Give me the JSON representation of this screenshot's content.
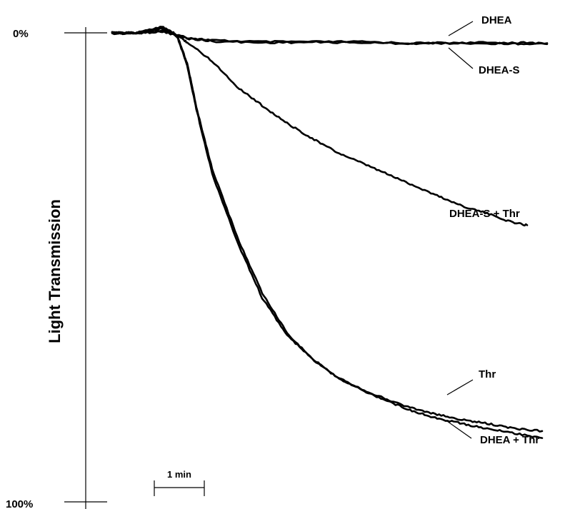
{
  "chart_data": {
    "type": "line",
    "ylabel": "Light Transmission",
    "y_ticks": [
      "0%",
      "100%"
    ],
    "ylim": [
      0,
      100
    ],
    "y_inverted": true,
    "x_units": "min",
    "xlim": [
      0,
      8.7
    ],
    "time_scale_bar": {
      "label": "1 min",
      "length": 1
    },
    "grid": false,
    "legend": "none (direct labels at right end of traces)",
    "series": [
      {
        "name": "DHEA",
        "x": [
          0,
          0.5,
          1,
          1.5,
          2,
          3,
          4,
          5,
          6,
          7,
          8,
          8.7
        ],
        "y": [
          0,
          0,
          -0.4,
          1.0,
          1.6,
          1.9,
          1.9,
          1.9,
          2.2,
          2.1,
          2.1,
          2.2
        ]
      },
      {
        "name": "DHEA-S",
        "x": [
          0,
          0.5,
          1,
          1.5,
          2,
          3,
          4,
          5,
          6,
          7,
          8,
          8.7
        ],
        "y": [
          0.2,
          0.1,
          -0.3,
          1.2,
          1.8,
          2.1,
          2.0,
          2.1,
          2.3,
          2.2,
          2.3,
          2.4
        ]
      },
      {
        "name": "DHEA-S + Thr",
        "x": [
          0,
          0.5,
          1,
          1.3,
          1.5,
          2,
          2.5,
          3,
          3.5,
          4,
          4.5,
          5,
          5.5,
          6,
          6.5,
          7,
          7.5,
          8,
          8.3
        ],
        "y": [
          0,
          0,
          -0.9,
          0.5,
          2,
          6,
          11.5,
          15.5,
          19.3,
          22.5,
          25.5,
          27.8,
          30.1,
          32.4,
          34.7,
          36.9,
          38.5,
          40.4,
          41
        ]
      },
      {
        "name": "Thr",
        "x": [
          0,
          0.5,
          1,
          1.3,
          1.5,
          1.7,
          2,
          2.5,
          3,
          3.5,
          4,
          4.5,
          5,
          5.5,
          6,
          6.5,
          7,
          7.5,
          8,
          8.6
        ],
        "y": [
          0,
          0,
          -0.9,
          0.8,
          7,
          17,
          30,
          44.5,
          56.5,
          64.5,
          69.5,
          73.3,
          76,
          78.2,
          80,
          81.4,
          82.5,
          83.3,
          84.3,
          84.9
        ]
      },
      {
        "name": "DHEA + Thr",
        "x": [
          0,
          0.5,
          1,
          1.3,
          1.5,
          1.7,
          2,
          2.5,
          3,
          3.5,
          4,
          4.5,
          5,
          5.5,
          6,
          6.5,
          7,
          7.5,
          8,
          8.6
        ],
        "y": [
          0,
          0,
          -1.4,
          0.5,
          6.5,
          16.5,
          29,
          43.5,
          55.5,
          64,
          69.5,
          73.5,
          76.2,
          78.5,
          80.6,
          82.2,
          83.3,
          84.4,
          85.3,
          86.4
        ]
      }
    ]
  }
}
